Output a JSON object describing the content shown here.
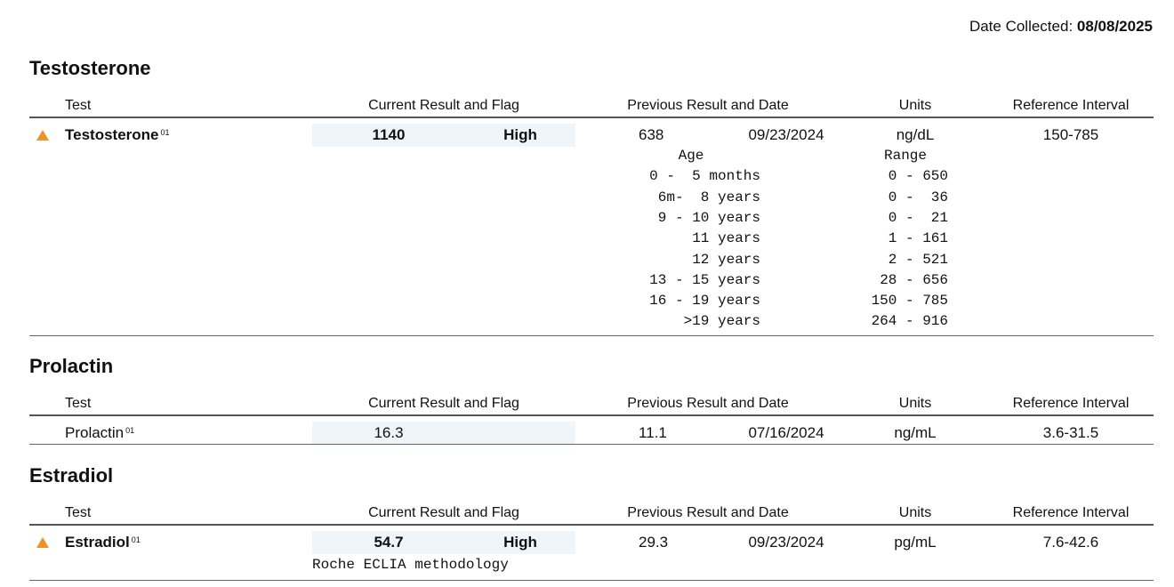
{
  "date_collected": {
    "label": "Date Collected:",
    "value": "08/08/2025"
  },
  "sections": [
    {
      "title": "Testosterone",
      "headers": [
        "Test",
        "Current Result and Flag",
        "Previous Result and Date",
        "Units",
        "Reference Interval"
      ],
      "rows": [
        {
          "test": "Testosterone",
          "footnote": "01",
          "result": "1140",
          "flag": "High",
          "previous_result": "638",
          "previous_date": "09/23/2024",
          "units": "ng/dL",
          "reference_interval": "150-785"
        }
      ],
      "reference_table": {
        "headers": [
          "Age",
          "Range"
        ],
        "rows": [
          [
            "0 -  5 months",
            "0 - 650"
          ],
          [
            "6m-  8 years",
            "0 -  36"
          ],
          [
            "9 - 10 years",
            "0 -  21"
          ],
          [
            "11 years",
            "1 - 161"
          ],
          [
            "12 years",
            "2 - 521"
          ],
          [
            "13 - 15 years",
            "28 - 656"
          ],
          [
            "16 - 19 years",
            "150 - 785"
          ],
          [
            ">19 years",
            "264 - 916"
          ]
        ]
      }
    },
    {
      "title": "Prolactin",
      "headers": [
        "Test",
        "Current Result and Flag",
        "Previous Result and Date",
        "Units",
        "Reference Interval"
      ],
      "rows": [
        {
          "test": "Prolactin",
          "footnote": "01",
          "result": "16.3",
          "previous_result": "11.1",
          "previous_date": "07/16/2024",
          "units": "ng/mL",
          "reference_interval": "3.6-31.5"
        }
      ]
    },
    {
      "title": "Estradiol",
      "headers": [
        "Test",
        "Current Result and Flag",
        "Previous Result and Date",
        "Units",
        "Reference Interval"
      ],
      "rows": [
        {
          "test": "Estradiol",
          "footnote": "01",
          "result": "54.7",
          "flag": "High",
          "previous_result": "29.3",
          "previous_date": "09/23/2024",
          "units": "pg/mL",
          "reference_interval": "7.6-42.6",
          "note": "Roche ECLIA methodology"
        }
      ]
    }
  ]
}
